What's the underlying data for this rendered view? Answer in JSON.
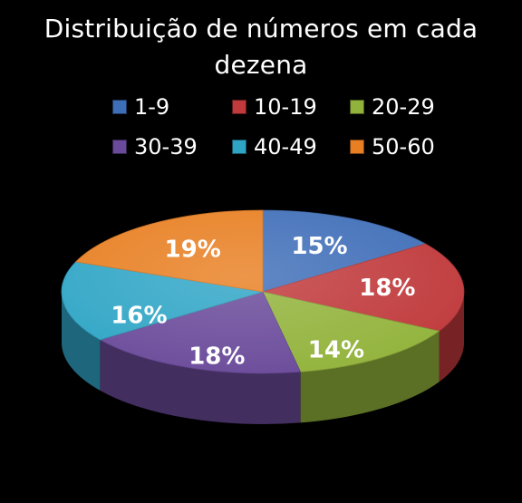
{
  "chart_data": {
    "type": "pie",
    "title_line1": "Distribuição de números em cada",
    "title_line2": "dezena",
    "categories": [
      "1-9",
      "10-19",
      "20-29",
      "30-39",
      "40-49",
      "50-60"
    ],
    "values": [
      15,
      18,
      14,
      18,
      16,
      19
    ],
    "labels": [
      "15%",
      "18%",
      "14%",
      "18%",
      "16%",
      "19%"
    ],
    "colors": [
      "#3F6EB8",
      "#C0393B",
      "#92B33B",
      "#6A4A9A",
      "#2FA5C6",
      "#E87F22"
    ],
    "style": "3d"
  }
}
